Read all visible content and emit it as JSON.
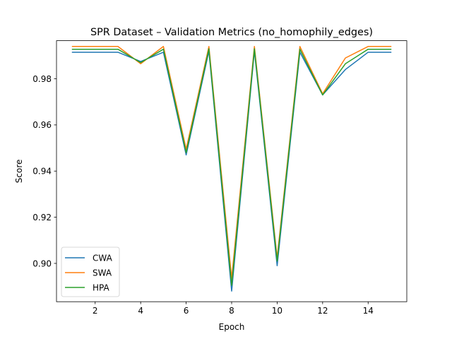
{
  "chart_data": {
    "type": "line",
    "title": "SPR Dataset – Validation Metrics (no_homophily_edges)",
    "xlabel": "Epoch",
    "ylabel": "Score",
    "xlim": [
      0.3,
      15.7
    ],
    "ylim": [
      0.8834,
      0.9965
    ],
    "xticks": [
      2,
      4,
      6,
      8,
      10,
      12,
      14
    ],
    "yticks": [
      0.9,
      0.92,
      0.94,
      0.96,
      0.98
    ],
    "ytick_labels": [
      "0.90",
      "0.92",
      "0.94",
      "0.96",
      "0.98"
    ],
    "grid": false,
    "legend_position": "lower left",
    "x": [
      1,
      2,
      3,
      4,
      5,
      6,
      7,
      8,
      9,
      10,
      11,
      12,
      13,
      14,
      15
    ],
    "series": [
      {
        "name": "CWA",
        "color": "#1f77b4",
        "values": [
          0.9915,
          0.9915,
          0.9915,
          0.9875,
          0.9915,
          0.947,
          0.992,
          0.888,
          0.992,
          0.899,
          0.9915,
          0.973,
          0.984,
          0.9915,
          0.9915
        ]
      },
      {
        "name": "SWA",
        "color": "#ff7f0e",
        "values": [
          0.994,
          0.994,
          0.994,
          0.9865,
          0.994,
          0.9495,
          0.994,
          0.8935,
          0.994,
          0.9025,
          0.994,
          0.9735,
          0.989,
          0.994,
          0.994
        ]
      },
      {
        "name": "HPA",
        "color": "#2ca02c",
        "values": [
          0.9928,
          0.9928,
          0.9928,
          0.987,
          0.9928,
          0.948,
          0.993,
          0.8905,
          0.993,
          0.901,
          0.9928,
          0.973,
          0.9865,
          0.9928,
          0.9928
        ]
      }
    ]
  }
}
